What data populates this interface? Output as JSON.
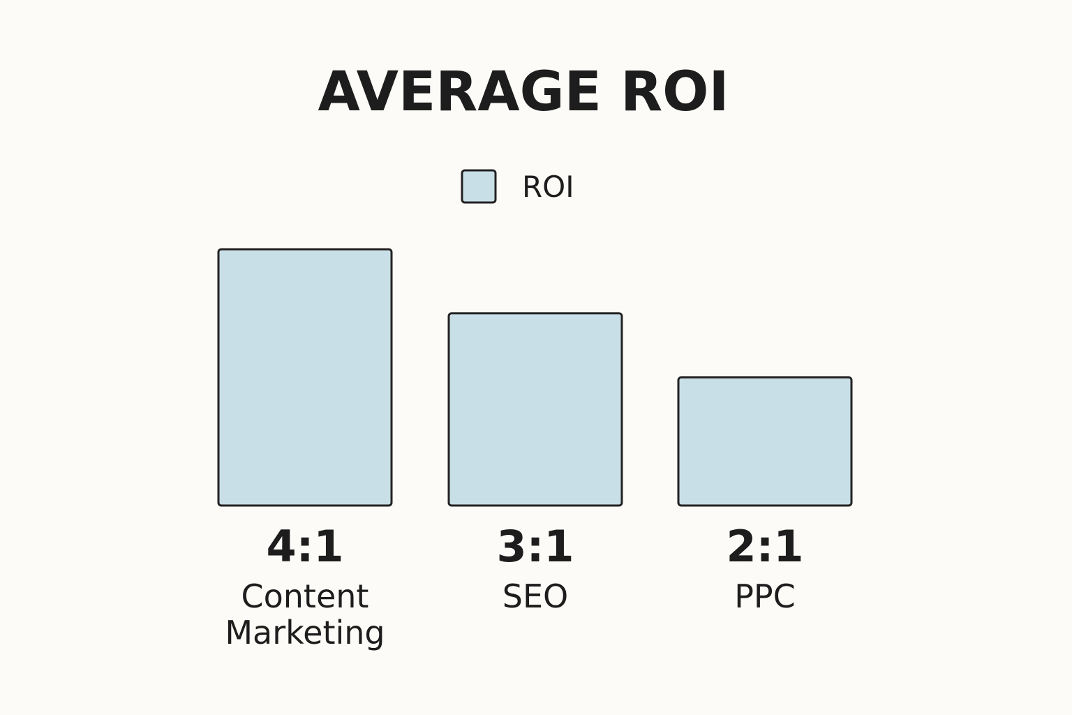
{
  "chart_data": {
    "type": "bar",
    "title": "AVERAGE ROI",
    "categories": [
      "Content Marketing",
      "SEO",
      "PPC"
    ],
    "series": [
      {
        "name": "ROI",
        "color": "#c9dfe8",
        "values": [
          4,
          3,
          2
        ],
        "value_labels": [
          "4:1",
          "3:1",
          "2:1"
        ]
      }
    ]
  }
}
